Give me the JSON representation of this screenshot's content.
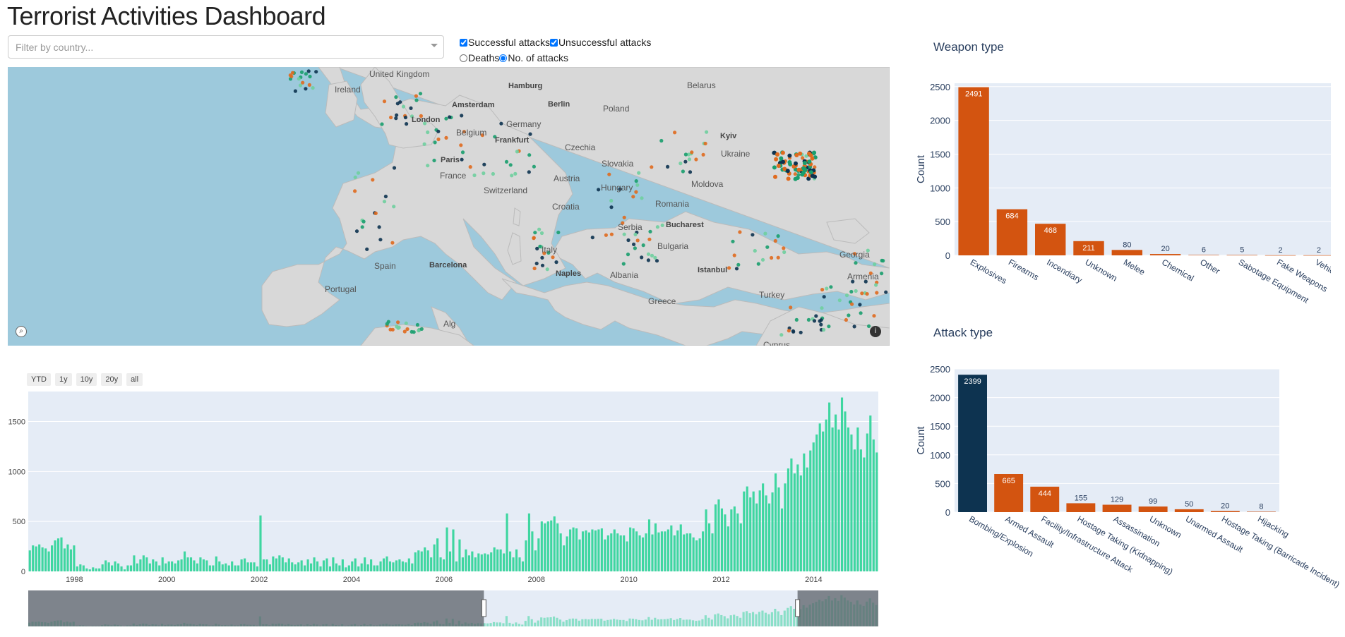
{
  "page_title": "Terrorist Activities Dashboard",
  "filter": {
    "placeholder": "Filter by country..."
  },
  "checkboxes": [
    {
      "label": "Successful attacks",
      "checked": true
    },
    {
      "label": "Unsuccessful attacks",
      "checked": true
    }
  ],
  "radios": [
    {
      "label": "Deaths",
      "checked": false
    },
    {
      "label": "No. of attacks",
      "checked": true
    }
  ],
  "map": {
    "countries": [
      "United Kingdom",
      "Ireland",
      "Belarus",
      "Poland",
      "Germany",
      "Belgium",
      "Czechia",
      "Ukraine",
      "France",
      "Slovakia",
      "Austria",
      "Switzerland",
      "Hungary",
      "Moldova",
      "Romania",
      "Croatia",
      "Serbia",
      "Bulgaria",
      "Italy",
      "Albania",
      "Spain",
      "Portugal",
      "Greece",
      "Turkey",
      "Georgia",
      "Armenia",
      "Cyprus",
      "Alg"
    ],
    "cities": [
      "Hamburg",
      "Berlin",
      "Amsterdam",
      "London",
      "Frankfurt",
      "Paris",
      "Kyiv",
      "Bucharest",
      "Barcelona",
      "Naples",
      "Istanbul"
    ],
    "colors": {
      "success": "#1a9e6e",
      "fail": "#e06a1e",
      "dark": "#0d3350",
      "light": "#6fcf9f"
    }
  },
  "range_buttons": [
    "YTD",
    "1y",
    "10y",
    "20y",
    "all"
  ],
  "time_chart": {
    "type": "bar",
    "color": "#3ed6a0",
    "x_ticks": [
      "1998",
      "2000",
      "2002",
      "2004",
      "2006",
      "2008",
      "2010",
      "2012",
      "2014"
    ],
    "y_ticks": [
      "0",
      "500",
      "1000",
      "1500"
    ],
    "ylim": [
      0,
      1800
    ],
    "start_year": 1997,
    "end_year": 2015.4,
    "monthly_values": [
      210,
      260,
      250,
      270,
      240,
      230,
      200,
      260,
      310,
      330,
      340,
      230,
      270,
      220,
      260,
      50,
      70,
      60,
      30,
      20,
      40,
      30,
      30,
      70,
      110,
      90,
      60,
      100,
      80,
      50,
      20,
      60,
      60,
      160,
      80,
      120,
      160,
      140,
      80,
      120,
      100,
      60,
      140,
      80,
      100,
      100,
      80,
      110,
      120,
      200,
      140,
      140,
      110,
      80,
      140,
      120,
      110,
      60,
      60,
      150,
      100,
      70,
      80,
      60,
      100,
      60,
      60,
      120,
      130,
      90,
      90,
      90,
      50,
      560,
      120,
      120,
      70,
      150,
      130,
      160,
      140,
      90,
      130,
      90,
      70,
      90,
      110,
      60,
      120,
      80,
      140,
      100,
      50,
      110,
      130,
      50,
      140,
      80,
      60,
      120,
      40,
      60,
      100,
      130,
      50,
      80,
      140,
      70,
      120,
      60,
      60,
      100,
      130,
      150,
      100,
      90,
      110,
      120,
      100,
      90,
      130,
      80,
      190,
      210,
      200,
      240,
      210,
      140,
      270,
      330,
      140,
      120,
      440,
      200,
      420,
      100,
      320,
      140,
      220,
      160,
      200,
      140,
      180,
      170,
      180,
      170,
      190,
      240,
      220,
      220,
      180,
      580,
      200,
      140,
      220,
      140,
      100,
      310,
      580,
      400,
      210,
      330,
      500,
      480,
      500,
      510,
      550,
      480,
      380,
      260,
      350,
      420,
      440,
      430,
      320,
      400,
      410,
      390,
      420,
      410,
      420,
      430,
      320,
      360,
      380,
      420,
      380,
      360,
      360,
      300,
      440,
      430,
      400,
      360,
      340,
      380,
      520,
      370,
      480,
      390,
      400,
      400,
      420,
      460,
      360,
      410,
      470,
      370,
      380,
      380,
      340,
      310,
      330,
      400,
      620,
      480,
      380,
      670,
      720,
      630,
      570,
      450,
      620,
      650,
      580,
      480,
      800,
      850,
      740,
      800,
      680,
      810,
      880,
      760,
      680,
      790,
      980,
      840,
      630,
      880,
      1030,
      1130,
      980,
      1070,
      960,
      1180,
      1040,
      1210,
      1290,
      1370,
      1480,
      1400,
      1520,
      1690,
      1440,
      1570,
      1420,
      1740,
      1600,
      1440,
      1370,
      1220,
      1440,
      1220,
      1140,
      1380,
      1560,
      1320,
      1190
    ]
  },
  "weapon_chart": {
    "title": "Weapon type",
    "type": "bar",
    "ylabel": "Count",
    "y_ticks": [
      "0",
      "500",
      "1000",
      "1500",
      "2000",
      "2500"
    ],
    "ylim": [
      0,
      2550
    ],
    "color": "#d35410",
    "categories": [
      "Explosives",
      "Firearms",
      "Incendiary",
      "Unknown",
      "Melee",
      "Chemical",
      "Other",
      "Sabotage Equipment",
      "Fake Weapons",
      "Vehicle"
    ],
    "values": [
      2491,
      684,
      468,
      211,
      80,
      20,
      6,
      5,
      2,
      2
    ]
  },
  "attack_chart": {
    "title": "Attack type",
    "type": "bar",
    "ylabel": "Count",
    "y_ticks": [
      "0",
      "500",
      "1000",
      "1500",
      "2000",
      "2500"
    ],
    "ylim": [
      0,
      2500
    ],
    "color": "#d35410",
    "highlight_color": "#0d3350",
    "categories": [
      "Bombing/Explosion",
      "Armed Assault",
      "Facility/Infrastructure Attack",
      "Hostage Taking (Kidnapping)",
      "Assassination",
      "Unknown",
      "Unarmed Assault",
      "Hostage Taking (Barricade Incident)",
      "Hijacking"
    ],
    "values": [
      2399,
      665,
      444,
      155,
      129,
      99,
      50,
      20,
      8
    ]
  }
}
